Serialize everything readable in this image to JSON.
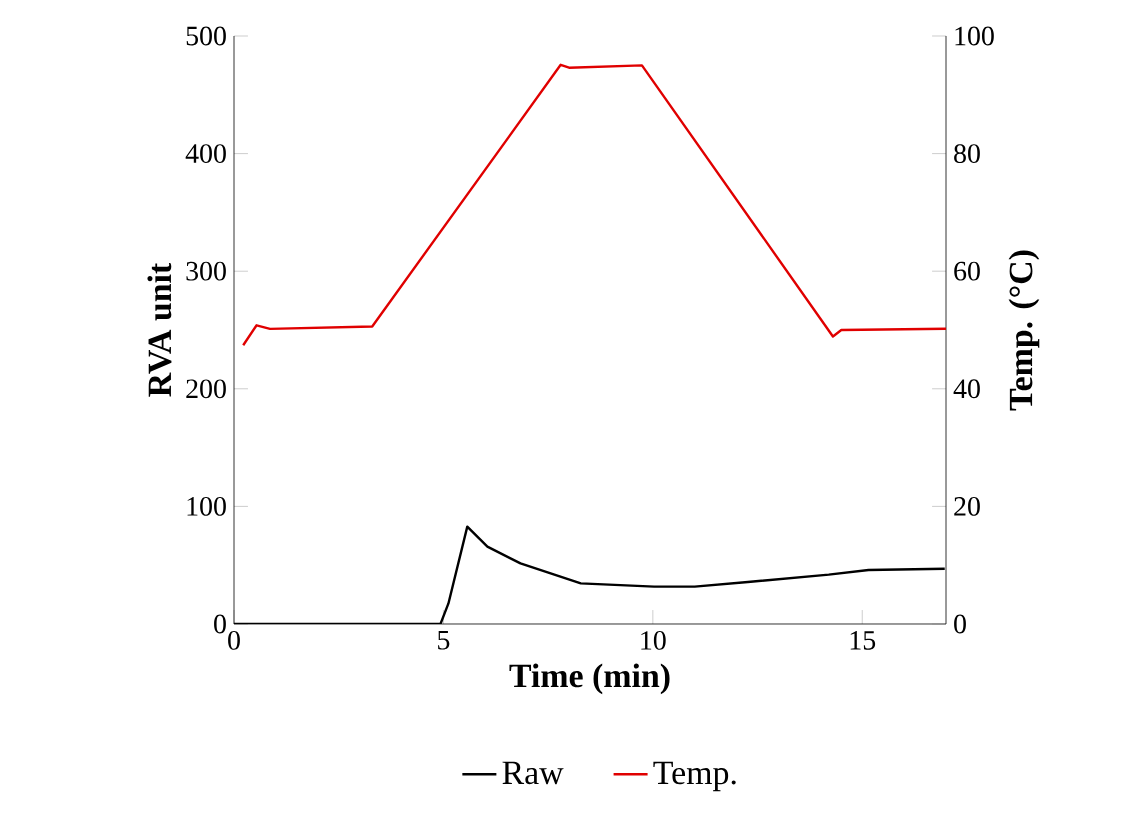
{
  "chart_data": {
    "type": "line",
    "xlabel": "Time (min)",
    "ylabel": "RVA unit",
    "y2label": "Temp. (°C)",
    "xlim": [
      0,
      17
    ],
    "xticks": [
      0,
      5,
      10,
      15
    ],
    "ylim": [
      0,
      500
    ],
    "yticks": [
      0,
      100,
      200,
      300,
      400,
      500
    ],
    "y2lim": [
      0,
      100
    ],
    "y2ticks": [
      0,
      20,
      40,
      60,
      80,
      100
    ],
    "legend": "bottom",
    "series": [
      {
        "name": "Raw",
        "color": "#000000",
        "x": [
          0,
          4.93,
          5.12,
          5.57,
          6.05,
          6.84,
          8.28,
          10.03,
          11.0,
          12.27,
          14.2,
          15.15,
          16.97
        ],
        "values": [
          0,
          0,
          17.5,
          82.8,
          65.8,
          51.5,
          34.5,
          31.8,
          31.8,
          35.7,
          42,
          45.9,
          47
        ]
      },
      {
        "name": "Temp.",
        "color": "#e00000",
        "axis": "y2",
        "x": [
          0.22,
          0.54,
          0.86,
          3.3,
          7.8,
          8.0,
          9.74,
          14.3,
          14.5,
          17
        ],
        "values": [
          47.4,
          50.8,
          50.2,
          50.6,
          95.1,
          94.6,
          95,
          48.9,
          50,
          50.2
        ]
      }
    ]
  }
}
